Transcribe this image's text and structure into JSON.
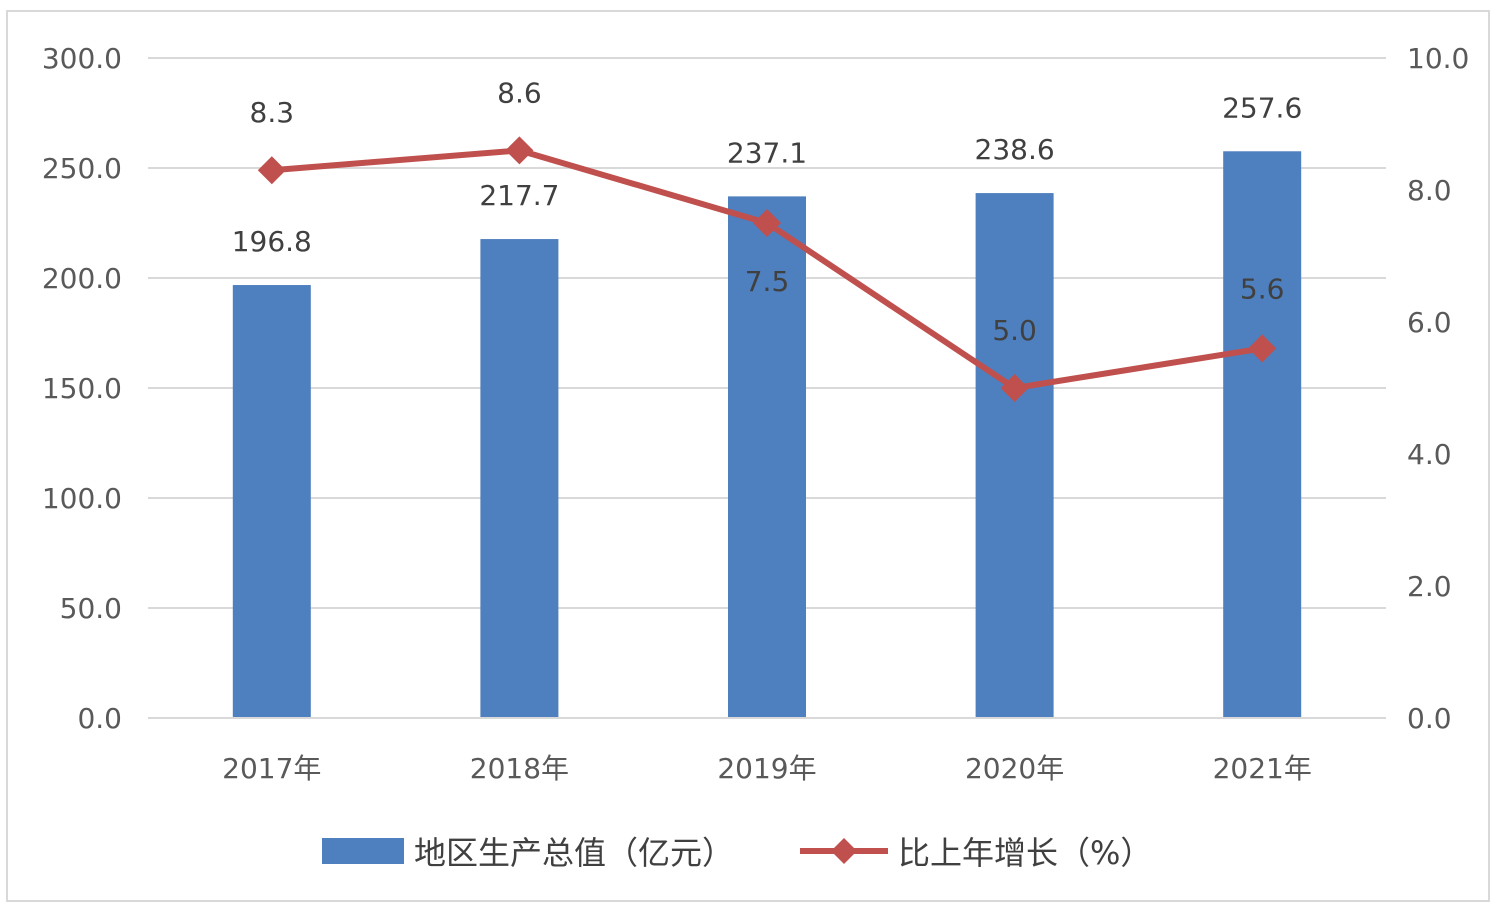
{
  "chart_data": {
    "type": "bar+line",
    "categories": [
      "2017年",
      "2018年",
      "2019年",
      "2020年",
      "2021年"
    ],
    "series": [
      {
        "name": "地区生产总值（亿元）",
        "type": "bar",
        "axis": "left",
        "values": [
          196.8,
          217.7,
          237.1,
          238.6,
          257.6
        ],
        "color": "#4e7fbe"
      },
      {
        "name": "比上年增长（%）",
        "type": "line",
        "axis": "right",
        "values": [
          8.3,
          8.6,
          7.5,
          5.0,
          5.6
        ],
        "color": "#c0504d"
      }
    ],
    "bar_labels": [
      "196.8",
      "217.7",
      "237.1",
      "238.6",
      "257.6"
    ],
    "line_labels": [
      "8.3",
      "8.6",
      "7.5",
      "5.0",
      "5.6"
    ],
    "y_left": {
      "range": [
        0,
        300
      ],
      "ticks": [
        "0.0",
        "50.0",
        "100.0",
        "150.0",
        "200.0",
        "250.0",
        "300.0"
      ]
    },
    "y_right": {
      "range": [
        0,
        10
      ],
      "ticks": [
        "0.0",
        "2.0",
        "4.0",
        "6.0",
        "8.0",
        "10.0"
      ]
    },
    "grid": true,
    "legend": "bottom",
    "title": ""
  }
}
